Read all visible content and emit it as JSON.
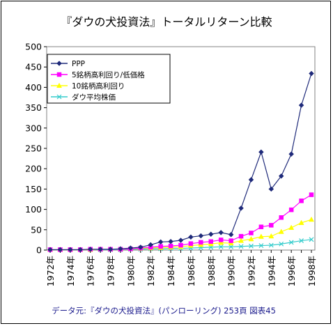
{
  "chart_data": {
    "type": "line",
    "title": "『ダウの犬投資法』トータルリターン比較",
    "source": "データ元:『ダウの犬投資法』(パンローリング) 253頁 図表45",
    "xlabel": "",
    "ylabel": "",
    "x": [
      1972,
      1973,
      1974,
      1975,
      1976,
      1977,
      1978,
      1979,
      1980,
      1981,
      1982,
      1983,
      1984,
      1985,
      1986,
      1987,
      1988,
      1989,
      1990,
      1991,
      1992,
      1993,
      1994,
      1995,
      1996,
      1997,
      1998
    ],
    "x_tick_labels": [
      "1972年",
      "1974年",
      "1976年",
      "1978年",
      "1980年",
      "1982年",
      "1984年",
      "1986年",
      "1988年",
      "1990年",
      "1992年",
      "1994年",
      "1996年",
      "1998年"
    ],
    "ylim": [
      0,
      500
    ],
    "y_ticks": [
      0,
      50,
      100,
      150,
      200,
      250,
      300,
      350,
      400,
      450,
      500
    ],
    "grid": false,
    "legend_position": "top-left",
    "series": [
      {
        "name": "PPP",
        "color": "#1f2a7a",
        "marker": "diamond",
        "values": [
          1,
          1,
          1,
          1,
          2,
          2,
          2,
          3,
          5,
          7,
          13,
          20,
          21,
          24,
          32,
          35,
          39,
          43,
          38,
          103,
          173,
          241,
          150,
          182,
          236,
          356,
          434
        ]
      },
      {
        "name": "5銘柄高利回り/低価格",
        "color": "#ff00ff",
        "marker": "square",
        "values": [
          1,
          1,
          1,
          1,
          2,
          2,
          2,
          2,
          3,
          5,
          7,
          9,
          10,
          12,
          16,
          19,
          21,
          25,
          23,
          34,
          42,
          57,
          61,
          80,
          99,
          121,
          136
        ]
      },
      {
        "name": "10銘柄高利回り",
        "color": "#ffff00",
        "marker": "triangle",
        "values": [
          1,
          1,
          1,
          1,
          1,
          2,
          2,
          2,
          3,
          4,
          5,
          6,
          7,
          8,
          11,
          13,
          15,
          18,
          17,
          23,
          27,
          33,
          34,
          45,
          55,
          67,
          75
        ]
      },
      {
        "name": "ダウ平均株価",
        "color": "#33cccc",
        "marker": "x",
        "values": [
          1,
          1,
          1,
          1,
          1,
          1,
          1,
          1,
          2,
          2,
          3,
          3,
          4,
          4,
          5,
          6,
          7,
          8,
          8,
          9,
          10,
          11,
          12,
          15,
          19,
          23,
          26
        ]
      }
    ]
  }
}
